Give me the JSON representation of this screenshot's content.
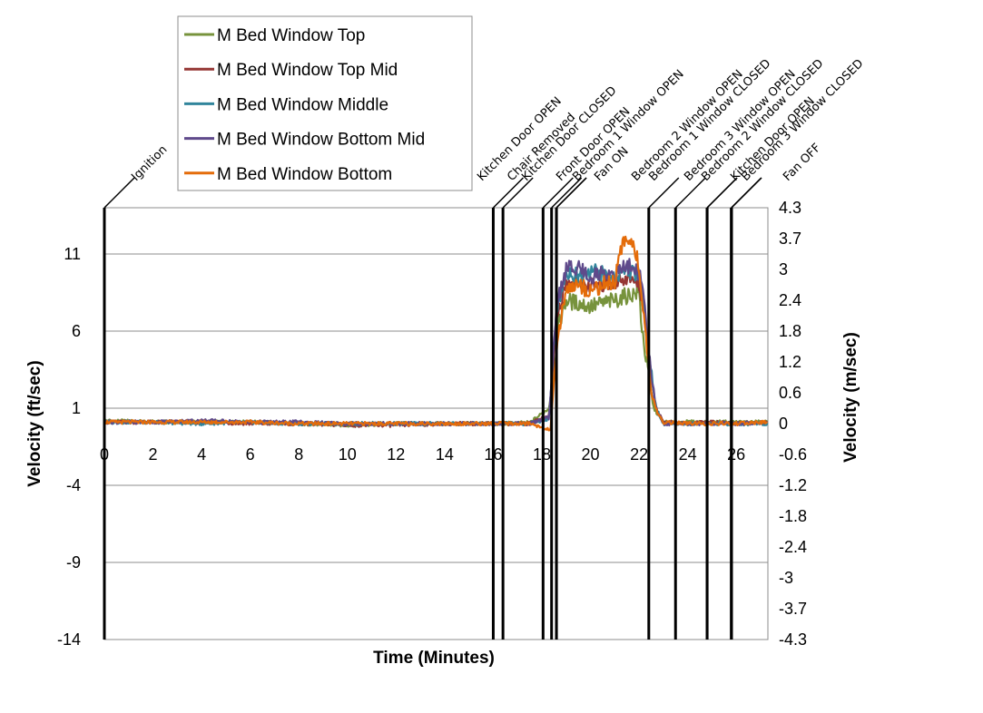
{
  "chart_data": {
    "type": "line",
    "title": "",
    "xlabel": "Time (Minutes)",
    "ylabel": "Velocity (ft/sec)",
    "y2label": "Velocity (m/sec)",
    "xlim": [
      0,
      27.3
    ],
    "ylim": [
      -14,
      14
    ],
    "x_ticks": [
      "0",
      "2",
      "4",
      "6",
      "8",
      "10",
      "12",
      "14",
      "16",
      "18",
      "20",
      "22",
      "24",
      "26"
    ],
    "y_ticks": [
      {
        "value": 11,
        "label": "11"
      },
      {
        "value": 6,
        "label": "6"
      },
      {
        "value": 1,
        "label": "1"
      },
      {
        "value": -4,
        "label": "-4"
      },
      {
        "value": -9,
        "label": "-9"
      },
      {
        "value": -14,
        "label": "-14"
      }
    ],
    "y2_ticks": [
      "4.3",
      "3.7",
      "3",
      "2.4",
      "1.8",
      "1.2",
      "0.6",
      "0",
      "-0.6",
      "-1.2",
      "-1.8",
      "-2.4",
      "-3",
      "-3.7",
      "-4.3"
    ],
    "grid": "horizontal",
    "legend_position": "top-left",
    "events": [
      {
        "label": "Ignition",
        "time": 0.0
      },
      {
        "label": "Kitchen Door OPEN",
        "time": 16.0
      },
      {
        "label": "Chair Removed",
        "time": 16.4
      },
      {
        "label": "Kitchen Door CLOSED",
        "time": 18.05
      },
      {
        "label": "Front Door OPEN",
        "time": 18.4
      },
      {
        "label": "Bedroom 1 Window OPEN",
        "time": 18.6
      },
      {
        "label": "Fan ON",
        "time": 18.6
      },
      {
        "label": "Bedroom 2 Window OPEN",
        "time": 22.4
      },
      {
        "label": "Bedroom 1 Window CLOSED",
        "time": 23.5
      },
      {
        "label": "Bedroom 3 Window OPEN",
        "time": 24.8
      },
      {
        "label": "Bedroom 2 Window CLOSED",
        "time": 24.8
      },
      {
        "label": "Kitchen Door OPEN",
        "time": 25.8
      },
      {
        "label": "Bedroom 3 Window CLOSED",
        "time": 25.8
      },
      {
        "label": "Fan OFF",
        "time": 25.8
      }
    ],
    "series": [
      {
        "name": "M Bed Window Top",
        "color": "#77933C",
        "x": [
          0,
          2,
          4,
          6,
          8,
          10,
          12,
          14,
          16,
          17.5,
          18.3,
          18.7,
          19.0,
          19.5,
          20.0,
          20.5,
          21.0,
          21.5,
          22.0,
          22.1,
          22.3,
          22.6,
          23.0,
          24,
          25,
          26,
          27.3
        ],
        "values": [
          0.2,
          0.1,
          0.1,
          0.1,
          0.0,
          -0.1,
          0.0,
          0.0,
          0.0,
          0.05,
          1.0,
          6.5,
          8.0,
          7.8,
          7.6,
          7.8,
          8.0,
          8.3,
          8.5,
          6.5,
          4.0,
          1.0,
          0.1,
          0.1,
          0.1,
          0.1,
          0.1
        ]
      },
      {
        "name": "M Bed Window Top Mid",
        "color": "#953735",
        "x": [
          0,
          2,
          4,
          6,
          8,
          10,
          12,
          14,
          16,
          17.5,
          18.3,
          18.6,
          19.0,
          19.5,
          20.0,
          20.5,
          21.0,
          21.5,
          22.0,
          22.2,
          22.4,
          22.7,
          23.0,
          24,
          25,
          26,
          27.3
        ],
        "values": [
          0.1,
          0.1,
          0.1,
          0.0,
          0.0,
          -0.1,
          -0.1,
          0.0,
          0.0,
          0.0,
          0.5,
          7.0,
          9.0,
          9.2,
          8.9,
          9.0,
          9.2,
          9.5,
          9.0,
          7.5,
          4.0,
          1.0,
          0.1,
          0.0,
          0.1,
          0.0,
          0.1
        ]
      },
      {
        "name": "M Bed Window Middle",
        "color": "#31859C",
        "x": [
          0,
          2,
          4,
          6,
          8,
          10,
          12,
          14,
          16,
          17.5,
          18.3,
          18.6,
          19.0,
          19.5,
          20.0,
          20.5,
          21.0,
          21.5,
          22.0,
          22.2,
          22.4,
          22.7,
          23.0,
          24,
          25,
          26,
          27.3
        ],
        "values": [
          0.1,
          0.1,
          0.0,
          0.1,
          0.0,
          0.0,
          0.0,
          0.0,
          0.0,
          0.0,
          0.3,
          7.5,
          9.8,
          9.6,
          10.0,
          9.7,
          9.5,
          10.0,
          9.6,
          7.8,
          4.5,
          1.0,
          0.0,
          0.0,
          0.0,
          0.0,
          0.0
        ]
      },
      {
        "name": "M Bed Window Bottom  Mid",
        "color": "#5F4A8B",
        "x": [
          0,
          2,
          4,
          6,
          8,
          10,
          12,
          14,
          16,
          17.5,
          18.3,
          18.6,
          19.0,
          19.5,
          20.0,
          20.5,
          21.0,
          21.5,
          22.0,
          22.2,
          22.4,
          22.7,
          23.0,
          24,
          25,
          26,
          27.3
        ],
        "values": [
          0.1,
          0.1,
          0.2,
          0.1,
          0.1,
          0.0,
          0.0,
          0.0,
          0.0,
          0.0,
          0.4,
          7.8,
          10.0,
          10.2,
          9.5,
          9.8,
          9.7,
          10.3,
          9.8,
          8.0,
          4.5,
          1.0,
          0.0,
          0.0,
          0.0,
          0.0,
          0.1
        ]
      },
      {
        "name": "M Bed Window Bottom",
        "color": "#E46C0A",
        "x": [
          0,
          2,
          4,
          6,
          8,
          10,
          12,
          14,
          16,
          17.5,
          18.2,
          18.35,
          18.6,
          19.0,
          19.5,
          20.0,
          20.5,
          21.0,
          21.3,
          21.6,
          21.9,
          22.1,
          22.3,
          22.5,
          22.8,
          23.0,
          24,
          25,
          26,
          27.3
        ],
        "values": [
          0.1,
          0.1,
          0.1,
          0.1,
          0.0,
          0.0,
          0.0,
          0.0,
          0.0,
          0.0,
          -0.3,
          -0.6,
          5.0,
          8.8,
          9.0,
          8.6,
          9.0,
          9.2,
          11.5,
          12.2,
          11.0,
          8.5,
          5.0,
          2.0,
          0.5,
          0.1,
          0.0,
          0.0,
          0.0,
          0.1
        ]
      }
    ]
  }
}
